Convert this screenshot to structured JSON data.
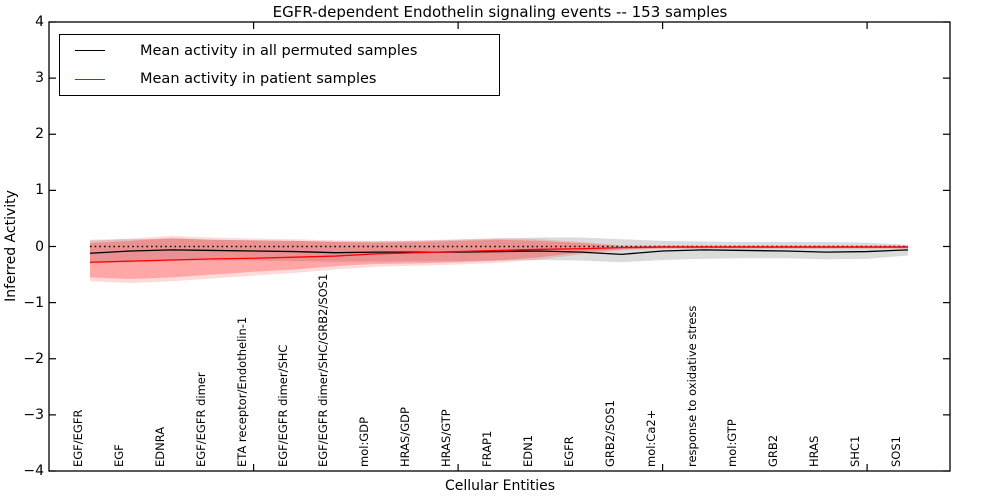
{
  "title": "EGFR-dependent Endothelin signaling events -- 153 samples",
  "legend": {
    "items": [
      {
        "label": "Mean activity in all permuted samples",
        "color": "#000000"
      },
      {
        "label": "Mean activity in patient samples",
        "color": "#ff0000"
      }
    ],
    "position": "upper left"
  },
  "chart_data": {
    "type": "line",
    "title": "EGFR-dependent Endothelin signaling events -- 153 samples",
    "xlabel": "Cellular Entities",
    "ylabel": "Inferred Activity",
    "ylim": [
      -4,
      4
    ],
    "yticks": [
      4,
      3,
      2,
      1,
      0,
      -1,
      -2,
      -3,
      -4
    ],
    "xtick_indices": [
      4,
      9,
      14,
      19
    ],
    "grid": false,
    "categories": [
      "EGF/EGFR",
      "EGF",
      "EDNRA",
      "EGF/EGFR dimer",
      "ETA receptor/Endothelin-1",
      "EGF/EGFR dimer/SHC",
      "EGF/EGFR dimer/SHC/GRB2/SOS1",
      "mol:GDP",
      "HRAS/GDP",
      "HRAS/GTP",
      "FRAP1",
      "EDN1",
      "EGFR",
      "GRB2/SOS1",
      "mol:Ca2+",
      "response to oxidative stress",
      "mol:GTP",
      "GRB2",
      "HRAS",
      "SHC1",
      "SOS1"
    ],
    "series": [
      {
        "name": "zero-reference",
        "color": "#000000",
        "style": "dotted",
        "values": [
          0,
          0,
          0,
          0,
          0,
          0,
          0,
          0,
          0,
          0,
          0,
          0,
          0,
          0,
          0,
          0,
          0,
          0,
          0,
          0,
          0
        ]
      },
      {
        "name": "Mean activity in all permuted samples",
        "color": "#000000",
        "style": "solid",
        "values": [
          -0.12,
          -0.08,
          -0.06,
          -0.07,
          -0.08,
          -0.09,
          -0.11,
          -0.1,
          -0.1,
          -0.1,
          -0.09,
          -0.08,
          -0.1,
          -0.14,
          -0.08,
          -0.06,
          -0.07,
          -0.08,
          -0.1,
          -0.09,
          -0.06
        ]
      },
      {
        "name": "Mean activity in patient samples",
        "color": "#ff0000",
        "style": "solid",
        "values": [
          -0.28,
          -0.26,
          -0.24,
          -0.22,
          -0.21,
          -0.19,
          -0.17,
          -0.13,
          -0.11,
          -0.09,
          -0.07,
          -0.05,
          -0.04,
          -0.02,
          -0.01,
          -0.01,
          -0.01,
          -0.01,
          -0.01,
          -0.01,
          -0.01
        ]
      }
    ],
    "bands": [
      {
        "name": "permuted-samples-range",
        "color": "rgba(125,125,125,0.28)",
        "top": [
          0.12,
          0.13,
          0.14,
          0.12,
          0.11,
          0.1,
          0.09,
          0.09,
          0.1,
          0.12,
          0.14,
          0.16,
          0.16,
          0.13,
          0.1,
          0.09,
          0.08,
          0.08,
          0.08,
          0.07,
          0.03
        ],
        "bottom": [
          -0.3,
          -0.28,
          -0.26,
          -0.25,
          -0.25,
          -0.26,
          -0.27,
          -0.27,
          -0.26,
          -0.26,
          -0.25,
          -0.24,
          -0.25,
          -0.28,
          -0.24,
          -0.22,
          -0.21,
          -0.21,
          -0.23,
          -0.22,
          -0.16
        ]
      },
      {
        "name": "patient-samples-range-outer",
        "color": "rgba(255,50,50,0.18)",
        "top": [
          0.1,
          0.14,
          0.19,
          0.16,
          0.14,
          0.13,
          0.11,
          0.1,
          0.11,
          0.13,
          0.15,
          0.13,
          0.08,
          0.02,
          0.02,
          0.02,
          0.02,
          0.02,
          0.02,
          0.02,
          0.02
        ],
        "bottom": [
          -0.62,
          -0.65,
          -0.62,
          -0.57,
          -0.52,
          -0.47,
          -0.41,
          -0.36,
          -0.34,
          -0.32,
          -0.29,
          -0.23,
          -0.14,
          -0.07,
          -0.04,
          -0.04,
          -0.04,
          -0.04,
          -0.04,
          -0.04,
          -0.04
        ]
      },
      {
        "name": "patient-samples-range-inner",
        "color": "rgba(255,50,50,0.30)",
        "top": [
          0.06,
          0.1,
          0.15,
          0.12,
          0.11,
          0.1,
          0.08,
          0.07,
          0.08,
          0.1,
          0.12,
          0.1,
          0.06,
          0.01,
          0.01,
          0.01,
          0.01,
          0.01,
          0.01,
          0.01,
          0.01
        ],
        "bottom": [
          -0.55,
          -0.58,
          -0.55,
          -0.5,
          -0.45,
          -0.41,
          -0.35,
          -0.31,
          -0.3,
          -0.28,
          -0.25,
          -0.19,
          -0.11,
          -0.05,
          -0.03,
          -0.03,
          -0.03,
          -0.03,
          -0.03,
          -0.03,
          -0.03
        ]
      }
    ],
    "legend_position": "upper left"
  }
}
